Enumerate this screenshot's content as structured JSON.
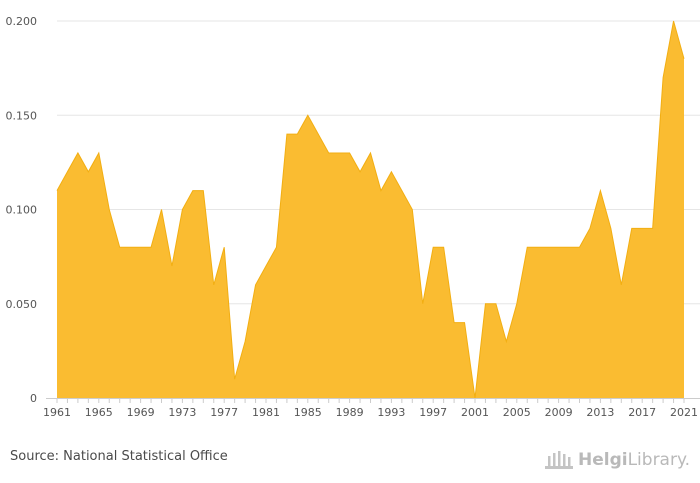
{
  "chart_data": {
    "type": "area",
    "title": "",
    "xlabel": "",
    "ylabel": "",
    "x": [
      1961,
      1962,
      1963,
      1964,
      1965,
      1966,
      1967,
      1968,
      1969,
      1970,
      1971,
      1972,
      1973,
      1974,
      1975,
      1976,
      1977,
      1978,
      1979,
      1980,
      1981,
      1982,
      1983,
      1984,
      1985,
      1986,
      1987,
      1988,
      1989,
      1990,
      1991,
      1992,
      1993,
      1994,
      1995,
      1996,
      1997,
      1998,
      1999,
      2000,
      2001,
      2002,
      2003,
      2004,
      2005,
      2006,
      2007,
      2008,
      2009,
      2010,
      2011,
      2012,
      2013,
      2014,
      2015,
      2016,
      2017,
      2018,
      2019,
      2020,
      2021
    ],
    "values": [
      0.11,
      0.12,
      0.13,
      0.12,
      0.13,
      0.1,
      0.08,
      0.08,
      0.08,
      0.08,
      0.1,
      0.07,
      0.1,
      0.11,
      0.11,
      0.06,
      0.08,
      0.01,
      0.03,
      0.06,
      0.07,
      0.08,
      0.14,
      0.14,
      0.15,
      0.14,
      0.13,
      0.13,
      0.13,
      0.12,
      0.13,
      0.11,
      0.12,
      0.11,
      0.1,
      0.05,
      0.08,
      0.08,
      0.04,
      0.04,
      0.0,
      0.05,
      0.05,
      0.03,
      0.05,
      0.08,
      0.08,
      0.08,
      0.08,
      0.08,
      0.08,
      0.09,
      0.11,
      0.09,
      0.06,
      0.09,
      0.09,
      0.09,
      0.17,
      0.2,
      0.18
    ],
    "xticks": [
      "1961",
      "1965",
      "1969",
      "1973",
      "1977",
      "1981",
      "1985",
      "1989",
      "1993",
      "1997",
      "2001",
      "2005",
      "2009",
      "2013",
      "2017",
      "2021"
    ],
    "yticks": [
      "0",
      "0.050",
      "0.100",
      "0.150",
      "0.200"
    ],
    "ylim": [
      0,
      0.2
    ],
    "xlim": [
      1961,
      2021
    ],
    "grid": true,
    "colors": {
      "fill": "#FABC31",
      "line": "#F2AE12",
      "grid": "#e6e6e6",
      "axis": "#cccccc"
    }
  },
  "footer": {
    "source": "Source: National Statistical Office",
    "logo_part1": "Helgi",
    "logo_part2": "Library."
  }
}
